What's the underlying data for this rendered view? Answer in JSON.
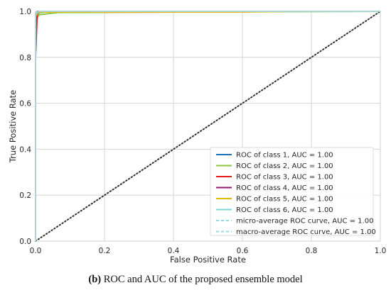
{
  "chart_data": {
    "type": "line",
    "xlabel": "False Positive Rate",
    "ylabel": "True Positive Rate",
    "xlim": [
      0.0,
      1.0
    ],
    "ylim": [
      0.0,
      1.0
    ],
    "xticks": [
      "0.0",
      "0.2",
      "0.4",
      "0.6",
      "0.8",
      "1.0"
    ],
    "yticks": [
      "0.0",
      "0.2",
      "0.4",
      "0.6",
      "0.8",
      "1.0"
    ],
    "grid": true,
    "legend_position": "bottom-right",
    "series": [
      {
        "name": "ROC of class 1, AUC = 1.00",
        "color": "#1f6fb4",
        "dash": "solid",
        "x": [
          0.0,
          0.0,
          0.01,
          0.05,
          1.0
        ],
        "y": [
          0.0,
          0.97,
          0.995,
          1.0,
          1.0
        ]
      },
      {
        "name": "ROC of class 2, AUC = 1.00",
        "color": "#8dc63f",
        "dash": "solid",
        "x": [
          0.0,
          0.0,
          0.01,
          0.065,
          1.0
        ],
        "y": [
          0.0,
          0.96,
          0.985,
          0.995,
          1.0
        ]
      },
      {
        "name": "ROC of class 3, AUC = 1.00",
        "color": "#e31a1c",
        "dash": "solid",
        "x": [
          0.0,
          0.0,
          0.005,
          1.0
        ],
        "y": [
          0.0,
          0.8,
          1.0,
          1.0
        ]
      },
      {
        "name": "ROC of class 4, AUC = 1.00",
        "color": "#8b1a6b",
        "dash": "solid",
        "x": [
          0.0,
          0.0,
          0.005,
          1.0
        ],
        "y": [
          0.0,
          0.99,
          1.0,
          1.0
        ]
      },
      {
        "name": "ROC of class 5, AUC = 1.00",
        "color": "#e6b800",
        "dash": "solid",
        "x": [
          0.0,
          0.0,
          0.01,
          0.58,
          0.74,
          1.0
        ],
        "y": [
          0.0,
          0.98,
          0.997,
          0.997,
          1.0,
          1.0
        ]
      },
      {
        "name": "ROC of class 6, AUC = 1.00",
        "color": "#7fd3d3",
        "dash": "solid",
        "x": [
          0.0,
          0.0,
          0.01,
          1.0
        ],
        "y": [
          0.0,
          0.99,
          1.0,
          1.0
        ]
      },
      {
        "name": "micro-average ROC curve, AUC = 1.00",
        "color": "#8fd8e6",
        "dash": "dashed",
        "x": [
          0.0,
          0.0,
          0.005,
          1.0
        ],
        "y": [
          0.0,
          0.995,
          1.0,
          1.0
        ]
      },
      {
        "name": "macro-average ROC curve, AUC = 1.00",
        "color": "#8fd8e6",
        "dash": "dashed",
        "x": [
          0.0,
          0.0,
          0.005,
          1.0
        ],
        "y": [
          0.0,
          0.995,
          1.0,
          1.0
        ]
      }
    ],
    "reference_line": {
      "x": [
        0.0,
        1.0
      ],
      "y": [
        0.0,
        1.0
      ],
      "color": "#333333",
      "dash": "dotted"
    }
  },
  "caption": {
    "tag": "(b)",
    "text": "ROC and AUC of the proposed ensemble model"
  }
}
